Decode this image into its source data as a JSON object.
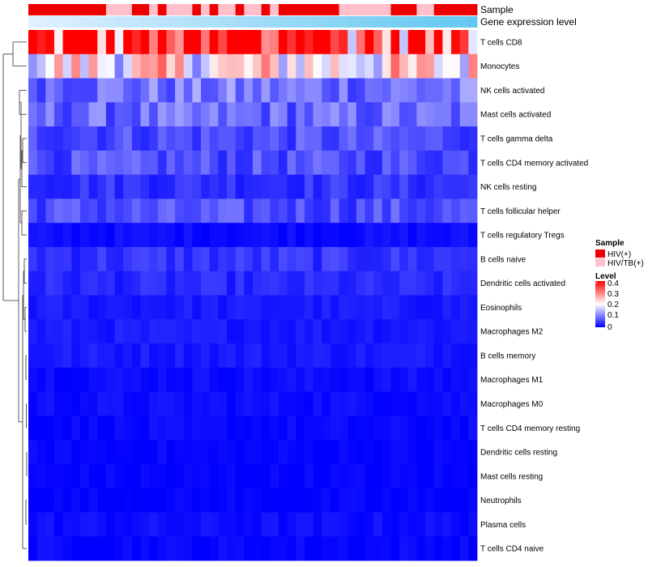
{
  "chart_data": {
    "type": "heatmap",
    "title": "",
    "annotation_labels": {
      "sample": "Sample",
      "expression": "Gene expression level"
    },
    "sample_annotation": "1111111110001101000101001001011111110000001110011111",
    "sample_colors": {
      "HIV(+)": "#ee0000",
      "HIV/TB(+)": "#ffc0cb"
    },
    "rows": [
      "T cells CD8",
      "Monocytes",
      "NK cells activated",
      "Mast cells activated",
      "T cells gamma delta",
      "T cells CD4 memory activated",
      "NK cells resting",
      "T cells follicular helper",
      "T cells regulatory  Tregs",
      "B cells naive",
      "Dendritic cells activated",
      "Eosinophils",
      "Macrophages M2",
      "B cells memory",
      "Macrophages M1",
      "Macrophages M0",
      "T cells CD4 memory resting",
      "Dendritic cells resting",
      "Mast cells resting",
      "Neutrophils",
      "Plasma cells",
      "T cells CD4 naive"
    ],
    "n_samples": 52,
    "color_scale": {
      "min": 0,
      "max": 0.4,
      "ticks": [
        0,
        0.1,
        0.2,
        0.3,
        0.4
      ],
      "low": "#0000ff",
      "mid": "#ffffff",
      "high": "#ff0000"
    },
    "row_mean_levels": [
      0.33,
      0.21,
      0.09,
      0.08,
      0.06,
      0.06,
      0.04,
      0.06,
      0.01,
      0.04,
      0.03,
      0.02,
      0.02,
      0.02,
      0.01,
      0.01,
      0.005,
      0.003,
      0.002,
      0.001,
      0.01,
      0.005
    ],
    "legend": {
      "sample_title": "Sample",
      "sample_entries": [
        "HIV(+)",
        "HIV/TB(+)"
      ],
      "level_title": "Level",
      "level_ticks": [
        "0.4",
        "0.3",
        "0.2",
        "0.1",
        "0"
      ]
    }
  }
}
